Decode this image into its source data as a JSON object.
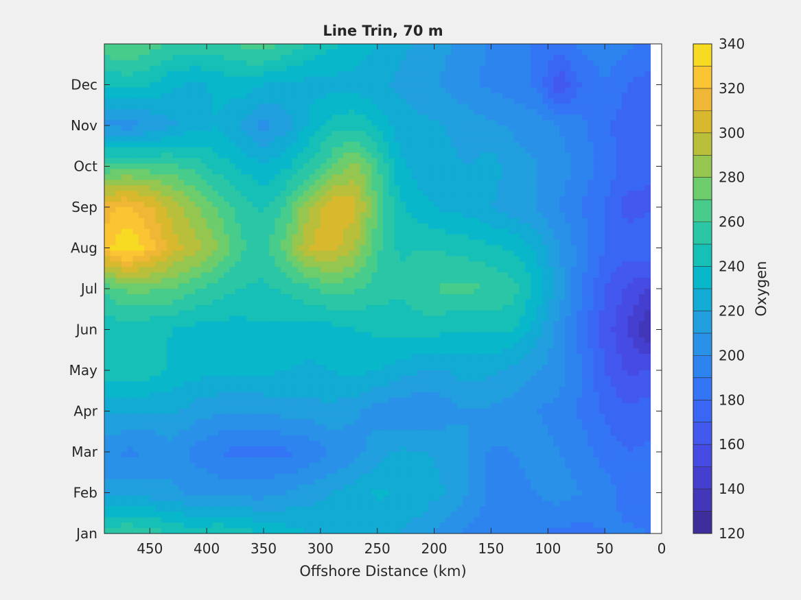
{
  "chart_data": {
    "type": "heatmap",
    "subtype": "filled-contour",
    "title": "Line Trin, 70 m",
    "xlabel": "Offshore Distance (km)",
    "ylabel": "",
    "x_direction": "reversed",
    "xlim": [
      490,
      0
    ],
    "ylim": [
      1,
      13
    ],
    "x_ticks": [
      450,
      400,
      350,
      300,
      250,
      200,
      150,
      100,
      50,
      0
    ],
    "y_ticks": [
      {
        "value": 1,
        "label": "Jan"
      },
      {
        "value": 2,
        "label": "Feb"
      },
      {
        "value": 3,
        "label": "Mar"
      },
      {
        "value": 4,
        "label": "Apr"
      },
      {
        "value": 5,
        "label": "May"
      },
      {
        "value": 6,
        "label": "Jun"
      },
      {
        "value": 7,
        "label": "Jul"
      },
      {
        "value": 8,
        "label": "Aug"
      },
      {
        "value": 9,
        "label": "Sep"
      },
      {
        "value": 10,
        "label": "Oct"
      },
      {
        "value": 11,
        "label": "Nov"
      },
      {
        "value": 12,
        "label": "Dec"
      }
    ],
    "colorbar": {
      "label": "Oxygen",
      "range": [
        120,
        340
      ],
      "ticks": [
        120,
        140,
        160,
        180,
        200,
        220,
        240,
        260,
        280,
        300,
        320,
        340
      ],
      "levels": [
        120,
        130,
        140,
        150,
        160,
        170,
        180,
        190,
        200,
        210,
        220,
        230,
        240,
        250,
        260,
        270,
        280,
        290,
        300,
        310,
        320,
        330,
        340
      ],
      "colors": [
        "#3d2e9b",
        "#4137b8",
        "#453fd0",
        "#464ce3",
        "#4258ee",
        "#3a66f4",
        "#3375f5",
        "#2e84ef",
        "#2a91e8",
        "#219fde",
        "#12abd4",
        "#08b7c9",
        "#16c0b7",
        "#2ac6a5",
        "#47cc8b",
        "#6dcc6c",
        "#94c650",
        "#b9bf3a",
        "#d8b92e",
        "#f0b636",
        "#fbc432",
        "#f7db22",
        "#f5ef1c"
      ],
      "colormap": "parula"
    },
    "grid": false,
    "months": [
      1,
      2,
      3,
      4,
      5,
      6,
      7,
      8,
      9,
      10,
      11,
      12,
      13
    ],
    "distances_km": [
      490,
      470,
      450,
      430,
      410,
      390,
      370,
      350,
      330,
      310,
      290,
      270,
      250,
      230,
      210,
      190,
      170,
      150,
      130,
      110,
      90,
      70,
      50,
      30,
      10
    ],
    "values": [
      [
        255,
        260,
        255,
        250,
        245,
        250,
        245,
        240,
        235,
        230,
        228,
        225,
        222,
        220,
        215,
        205,
        198,
        195,
        192,
        190,
        188,
        186,
        190,
        192,
        190
      ],
      [
        215,
        218,
        215,
        212,
        208,
        206,
        205,
        205,
        210,
        215,
        220,
        225,
        232,
        228,
        225,
        220,
        210,
        198,
        195,
        200,
        205,
        200,
        195,
        185,
        182
      ],
      [
        202,
        198,
        200,
        205,
        196,
        190,
        186,
        188,
        188,
        192,
        200,
        205,
        215,
        222,
        220,
        218,
        210,
        198,
        200,
        205,
        200,
        195,
        185,
        180,
        182
      ],
      [
        222,
        222,
        220,
        222,
        215,
        212,
        210,
        212,
        214,
        215,
        218,
        212,
        206,
        202,
        200,
        205,
        210,
        208,
        205,
        200,
        196,
        188,
        178,
        172,
        176
      ],
      [
        248,
        248,
        245,
        238,
        235,
        232,
        232,
        232,
        230,
        228,
        230,
        234,
        230,
        225,
        220,
        220,
        225,
        222,
        218,
        210,
        205,
        190,
        170,
        158,
        160
      ],
      [
        242,
        245,
        242,
        240,
        236,
        235,
        236,
        238,
        238,
        236,
        236,
        240,
        242,
        244,
        245,
        242,
        240,
        242,
        240,
        225,
        205,
        185,
        165,
        150,
        128
      ],
      [
        262,
        272,
        272,
        270,
        262,
        255,
        250,
        248,
        252,
        258,
        264,
        262,
        255,
        252,
        258,
        262,
        262,
        260,
        255,
        238,
        215,
        190,
        170,
        158,
        150
      ],
      [
        325,
        340,
        325,
        305,
        295,
        280,
        262,
        256,
        275,
        300,
        305,
        290,
        262,
        248,
        250,
        248,
        246,
        242,
        238,
        228,
        210,
        195,
        180,
        175,
        180
      ],
      [
        315,
        322,
        312,
        296,
        282,
        268,
        255,
        248,
        262,
        290,
        310,
        304,
        270,
        242,
        232,
        228,
        225,
        220,
        214,
        210,
        200,
        190,
        180,
        166,
        168
      ],
      [
        262,
        266,
        264,
        262,
        256,
        245,
        238,
        232,
        238,
        252,
        268,
        285,
        262,
        232,
        225,
        222,
        220,
        225,
        215,
        210,
        205,
        196,
        186,
        176,
        172
      ],
      [
        208,
        205,
        210,
        218,
        226,
        230,
        218,
        206,
        216,
        232,
        245,
        248,
        238,
        225,
        222,
        220,
        216,
        212,
        208,
        206,
        200,
        192,
        182,
        174,
        172
      ],
      [
        240,
        244,
        240,
        232,
        228,
        232,
        236,
        230,
        228,
        226,
        226,
        226,
        222,
        218,
        214,
        208,
        202,
        198,
        194,
        188,
        160,
        182,
        190,
        180,
        176
      ],
      [
        268,
        272,
        264,
        258,
        255,
        258,
        262,
        268,
        258,
        248,
        242,
        236,
        230,
        222,
        218,
        212,
        205,
        198,
        195,
        188,
        188,
        192,
        195,
        192,
        185
      ]
    ]
  }
}
